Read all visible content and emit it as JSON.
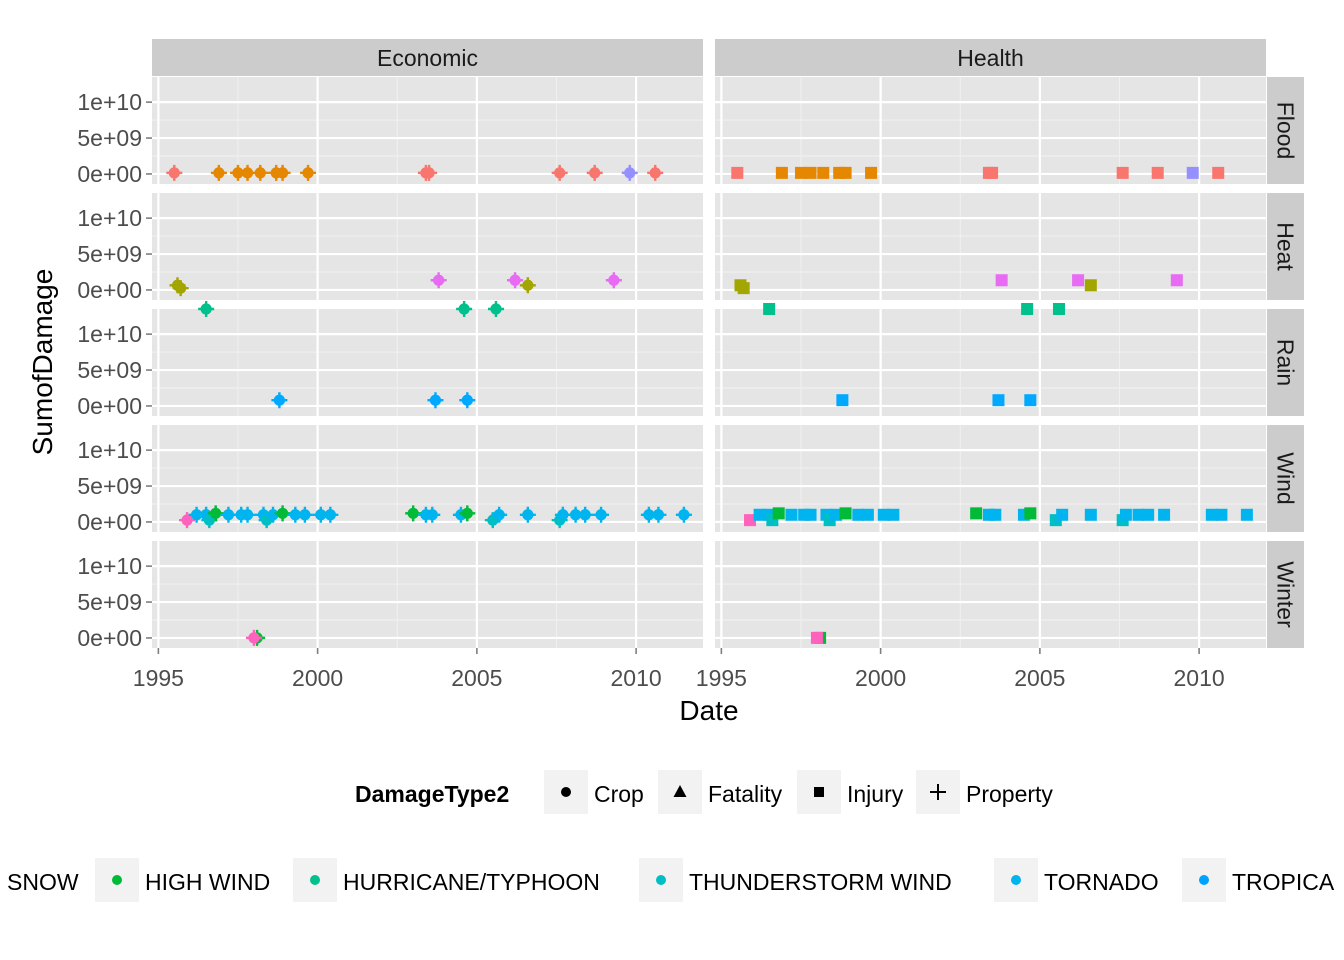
{
  "chart_data": {
    "type": "scatter",
    "xlabel": "Date",
    "ylabel": "SumofDamage",
    "xlim": [
      1994.8,
      2012.1
    ],
    "ylim": [
      -1400000000.0,
      13500000000.0
    ],
    "x_ticks": [
      1995,
      2000,
      2005,
      2010
    ],
    "x_tick_labels": [
      "1995",
      "2000",
      "2005",
      "2010"
    ],
    "y_ticks": [
      0,
      5000000000,
      10000000000
    ],
    "y_tick_labels": [
      "0e+00",
      "5e+09",
      "1e+10"
    ],
    "facet_cols": [
      "Economic",
      "Health"
    ],
    "facet_rows": [
      "Flood",
      "Heat",
      "Rain",
      "Wind",
      "Winter"
    ],
    "shape_legend": {
      "title": "DamageType2",
      "items": [
        {
          "label": "Crop",
          "shape": "circle"
        },
        {
          "label": "Fatality",
          "shape": "triangle"
        },
        {
          "label": "Injury",
          "shape": "square"
        },
        {
          "label": "Property",
          "shape": "plus"
        }
      ]
    },
    "color_legend": {
      "items": [
        {
          "label": "SNOW",
          "color": ""
        },
        {
          "label": "HIGH WIND",
          "color": "#00ba38"
        },
        {
          "label": "HURRICANE/TYPHOON",
          "color": "#00c08b"
        },
        {
          "label": "THUNDERSTORM WIND",
          "color": "#00bfc4"
        },
        {
          "label": "TORNADO",
          "color": "#00b4f0"
        },
        {
          "label": "TROPICA",
          "color": "#00a2ff"
        }
      ]
    },
    "panels": [
      {
        "row": "Flood",
        "col": "Economic",
        "shapes": [
          "circle",
          "plus"
        ],
        "points": [
          {
            "x": 1995.5,
            "y": 150000000.0,
            "color": "#f8766d"
          },
          {
            "x": 1996.9,
            "y": 150000000.0,
            "color": "#e58700"
          },
          {
            "x": 1997.5,
            "y": 150000000.0,
            "color": "#e58700"
          },
          {
            "x": 1997.8,
            "y": 150000000.0,
            "color": "#e58700"
          },
          {
            "x": 1998.2,
            "y": 150000000.0,
            "color": "#e58700"
          },
          {
            "x": 1998.7,
            "y": 150000000.0,
            "color": "#e58700"
          },
          {
            "x": 1998.9,
            "y": 150000000.0,
            "color": "#e58700"
          },
          {
            "x": 1999.7,
            "y": 150000000.0,
            "color": "#e58700"
          },
          {
            "x": 2003.4,
            "y": 150000000.0,
            "color": "#f8766d"
          },
          {
            "x": 2003.5,
            "y": 150000000.0,
            "color": "#f8766d"
          },
          {
            "x": 2007.6,
            "y": 150000000.0,
            "color": "#f8766d"
          },
          {
            "x": 2008.7,
            "y": 150000000.0,
            "color": "#f8766d"
          },
          {
            "x": 2009.8,
            "y": 150000000.0,
            "color": "#9590ff"
          },
          {
            "x": 2010.6,
            "y": 150000000.0,
            "color": "#f8766d"
          }
        ]
      },
      {
        "row": "Flood",
        "col": "Health",
        "shapes": [
          "square"
        ],
        "points": [
          {
            "x": 1995.5,
            "y": 150000000.0,
            "color": "#f8766d"
          },
          {
            "x": 1996.9,
            "y": 150000000.0,
            "color": "#e58700"
          },
          {
            "x": 1997.5,
            "y": 150000000.0,
            "color": "#e58700"
          },
          {
            "x": 1997.8,
            "y": 150000000.0,
            "color": "#e58700"
          },
          {
            "x": 1998.2,
            "y": 150000000.0,
            "color": "#e58700"
          },
          {
            "x": 1998.7,
            "y": 150000000.0,
            "color": "#e58700"
          },
          {
            "x": 1998.9,
            "y": 150000000.0,
            "color": "#e58700"
          },
          {
            "x": 1999.7,
            "y": 150000000.0,
            "color": "#e58700"
          },
          {
            "x": 2003.4,
            "y": 150000000.0,
            "color": "#f8766d"
          },
          {
            "x": 2003.5,
            "y": 150000000.0,
            "color": "#f8766d"
          },
          {
            "x": 2007.6,
            "y": 150000000.0,
            "color": "#f8766d"
          },
          {
            "x": 2008.7,
            "y": 150000000.0,
            "color": "#f8766d"
          },
          {
            "x": 2009.8,
            "y": 150000000.0,
            "color": "#9590ff"
          },
          {
            "x": 2010.6,
            "y": 150000000.0,
            "color": "#f8766d"
          }
        ]
      },
      {
        "row": "Heat",
        "col": "Economic",
        "shapes": [
          "circle",
          "plus"
        ],
        "points": [
          {
            "x": 1995.6,
            "y": 650000000.0,
            "color": "#a3a500"
          },
          {
            "x": 1995.7,
            "y": 250000000.0,
            "color": "#a3a500"
          },
          {
            "x": 2003.8,
            "y": 1350000000.0,
            "color": "#e76bf3"
          },
          {
            "x": 2006.2,
            "y": 1350000000.0,
            "color": "#e76bf3"
          },
          {
            "x": 2006.6,
            "y": 650000000.0,
            "color": "#a3a500"
          },
          {
            "x": 2009.3,
            "y": 1350000000.0,
            "color": "#e76bf3"
          }
        ]
      },
      {
        "row": "Heat",
        "col": "Health",
        "shapes": [
          "square"
        ],
        "points": [
          {
            "x": 1995.6,
            "y": 650000000.0,
            "color": "#a3a500"
          },
          {
            "x": 1995.7,
            "y": 250000000.0,
            "color": "#a3a500"
          },
          {
            "x": 2003.8,
            "y": 1350000000.0,
            "color": "#e76bf3"
          },
          {
            "x": 2006.2,
            "y": 1350000000.0,
            "color": "#e76bf3"
          },
          {
            "x": 2006.6,
            "y": 650000000.0,
            "color": "#a3a500"
          },
          {
            "x": 2009.3,
            "y": 1350000000.0,
            "color": "#e76bf3"
          }
        ]
      },
      {
        "row": "Rain",
        "col": "Economic",
        "shapes": [
          "circle",
          "plus"
        ],
        "points": [
          {
            "x": 1996.5,
            "y": 13500000000.0,
            "color": "#00c08b"
          },
          {
            "x": 2004.6,
            "y": 13500000000.0,
            "color": "#00c08b"
          },
          {
            "x": 2005.6,
            "y": 13500000000.0,
            "color": "#00c08b"
          },
          {
            "x": 1998.8,
            "y": 800000000.0,
            "color": "#00a9ff"
          },
          {
            "x": 2003.7,
            "y": 800000000.0,
            "color": "#00a9ff"
          },
          {
            "x": 2004.7,
            "y": 800000000.0,
            "color": "#00a9ff"
          }
        ]
      },
      {
        "row": "Rain",
        "col": "Health",
        "shapes": [
          "square"
        ],
        "points": [
          {
            "x": 1996.5,
            "y": 13500000000.0,
            "color": "#00c08b"
          },
          {
            "x": 2004.6,
            "y": 13500000000.0,
            "color": "#00c08b"
          },
          {
            "x": 2005.6,
            "y": 13500000000.0,
            "color": "#00c08b"
          },
          {
            "x": 1998.8,
            "y": 800000000.0,
            "color": "#00a9ff"
          },
          {
            "x": 2003.7,
            "y": 800000000.0,
            "color": "#00a9ff"
          },
          {
            "x": 2004.7,
            "y": 800000000.0,
            "color": "#00a9ff"
          }
        ]
      },
      {
        "row": "Wind",
        "col": "Economic",
        "shapes": [
          "circle",
          "plus"
        ],
        "points": [
          {
            "x": 1995.9,
            "y": 250000000.0,
            "color": "#ff62bc"
          },
          {
            "x": 1996.2,
            "y": 1000000000.0,
            "color": "#00b4f0"
          },
          {
            "x": 1996.5,
            "y": 1000000000.0,
            "color": "#00b4f0"
          },
          {
            "x": 1996.6,
            "y": 250000000.0,
            "color": "#00bfc4"
          },
          {
            "x": 1996.8,
            "y": 1200000000.0,
            "color": "#00ba38"
          },
          {
            "x": 1997.2,
            "y": 1000000000.0,
            "color": "#00b4f0"
          },
          {
            "x": 1997.6,
            "y": 1000000000.0,
            "color": "#00b4f0"
          },
          {
            "x": 1997.8,
            "y": 1000000000.0,
            "color": "#00b4f0"
          },
          {
            "x": 1998.3,
            "y": 1000000000.0,
            "color": "#00b4f0"
          },
          {
            "x": 1998.4,
            "y": 250000000.0,
            "color": "#00bfc4"
          },
          {
            "x": 1998.6,
            "y": 1000000000.0,
            "color": "#00b4f0"
          },
          {
            "x": 1998.9,
            "y": 1200000000.0,
            "color": "#00ba38"
          },
          {
            "x": 1999.3,
            "y": 1000000000.0,
            "color": "#00b4f0"
          },
          {
            "x": 1999.6,
            "y": 1000000000.0,
            "color": "#00b4f0"
          },
          {
            "x": 2000.1,
            "y": 1000000000.0,
            "color": "#00b4f0"
          },
          {
            "x": 2000.4,
            "y": 1000000000.0,
            "color": "#00b4f0"
          },
          {
            "x": 2003.0,
            "y": 1200000000.0,
            "color": "#00ba38"
          },
          {
            "x": 2003.4,
            "y": 1000000000.0,
            "color": "#00b4f0"
          },
          {
            "x": 2003.6,
            "y": 1000000000.0,
            "color": "#00b4f0"
          },
          {
            "x": 2004.5,
            "y": 1000000000.0,
            "color": "#00b4f0"
          },
          {
            "x": 2004.7,
            "y": 1200000000.0,
            "color": "#00ba38"
          },
          {
            "x": 2005.5,
            "y": 250000000.0,
            "color": "#00bfc4"
          },
          {
            "x": 2005.7,
            "y": 1000000000.0,
            "color": "#00b4f0"
          },
          {
            "x": 2006.6,
            "y": 1000000000.0,
            "color": "#00b4f0"
          },
          {
            "x": 2007.6,
            "y": 250000000.0,
            "color": "#00bfc4"
          },
          {
            "x": 2007.7,
            "y": 1000000000.0,
            "color": "#00b4f0"
          },
          {
            "x": 2008.1,
            "y": 1000000000.0,
            "color": "#00b4f0"
          },
          {
            "x": 2008.4,
            "y": 1000000000.0,
            "color": "#00b4f0"
          },
          {
            "x": 2008.9,
            "y": 1000000000.0,
            "color": "#00b4f0"
          },
          {
            "x": 2010.4,
            "y": 1000000000.0,
            "color": "#00b4f0"
          },
          {
            "x": 2010.7,
            "y": 1000000000.0,
            "color": "#00b4f0"
          },
          {
            "x": 2011.5,
            "y": 1000000000.0,
            "color": "#00b4f0"
          }
        ]
      },
      {
        "row": "Wind",
        "col": "Health",
        "shapes": [
          "square"
        ],
        "points": [
          {
            "x": 1995.9,
            "y": 250000000.0,
            "color": "#ff62bc"
          },
          {
            "x": 1996.2,
            "y": 1000000000.0,
            "color": "#00b4f0"
          },
          {
            "x": 1996.5,
            "y": 1000000000.0,
            "color": "#00b4f0"
          },
          {
            "x": 1996.6,
            "y": 250000000.0,
            "color": "#00bfc4"
          },
          {
            "x": 1996.8,
            "y": 1200000000.0,
            "color": "#00ba38"
          },
          {
            "x": 1997.2,
            "y": 1000000000.0,
            "color": "#00b4f0"
          },
          {
            "x": 1997.6,
            "y": 1000000000.0,
            "color": "#00b4f0"
          },
          {
            "x": 1997.8,
            "y": 1000000000.0,
            "color": "#00b4f0"
          },
          {
            "x": 1998.3,
            "y": 1000000000.0,
            "color": "#00b4f0"
          },
          {
            "x": 1998.4,
            "y": 250000000.0,
            "color": "#00bfc4"
          },
          {
            "x": 1998.6,
            "y": 1000000000.0,
            "color": "#00b4f0"
          },
          {
            "x": 1998.9,
            "y": 1200000000.0,
            "color": "#00ba38"
          },
          {
            "x": 1999.3,
            "y": 1000000000.0,
            "color": "#00b4f0"
          },
          {
            "x": 1999.6,
            "y": 1000000000.0,
            "color": "#00b4f0"
          },
          {
            "x": 2000.1,
            "y": 1000000000.0,
            "color": "#00b4f0"
          },
          {
            "x": 2000.4,
            "y": 1000000000.0,
            "color": "#00b4f0"
          },
          {
            "x": 2003.0,
            "y": 1200000000.0,
            "color": "#00ba38"
          },
          {
            "x": 2003.4,
            "y": 1000000000.0,
            "color": "#00b4f0"
          },
          {
            "x": 2003.6,
            "y": 1000000000.0,
            "color": "#00b4f0"
          },
          {
            "x": 2004.5,
            "y": 1000000000.0,
            "color": "#00b4f0"
          },
          {
            "x": 2004.7,
            "y": 1200000000.0,
            "color": "#00ba38"
          },
          {
            "x": 2005.5,
            "y": 250000000.0,
            "color": "#00bfc4"
          },
          {
            "x": 2005.7,
            "y": 1000000000.0,
            "color": "#00b4f0"
          },
          {
            "x": 2006.6,
            "y": 1000000000.0,
            "color": "#00b4f0"
          },
          {
            "x": 2007.6,
            "y": 250000000.0,
            "color": "#00bfc4"
          },
          {
            "x": 2007.7,
            "y": 1000000000.0,
            "color": "#00b4f0"
          },
          {
            "x": 2008.1,
            "y": 1000000000.0,
            "color": "#00b4f0"
          },
          {
            "x": 2008.4,
            "y": 1000000000.0,
            "color": "#00b4f0"
          },
          {
            "x": 2008.9,
            "y": 1000000000.0,
            "color": "#00b4f0"
          },
          {
            "x": 2010.4,
            "y": 1000000000.0,
            "color": "#00b4f0"
          },
          {
            "x": 2010.7,
            "y": 1000000000.0,
            "color": "#00b4f0"
          },
          {
            "x": 2011.5,
            "y": 1000000000.0,
            "color": "#00b4f0"
          }
        ]
      },
      {
        "row": "Winter",
        "col": "Economic",
        "shapes": [
          "circle",
          "plus"
        ],
        "points": [
          {
            "x": 1998.1,
            "y": 10000000.0,
            "color": "#00ba38"
          },
          {
            "x": 1998.0,
            "y": 10000000.0,
            "color": "#ff62bc"
          }
        ]
      },
      {
        "row": "Winter",
        "col": "Health",
        "shapes": [
          "square"
        ],
        "points": [
          {
            "x": 1998.1,
            "y": 10000000.0,
            "color": "#00ba38"
          },
          {
            "x": 1998.0,
            "y": 10000000.0,
            "color": "#ff62bc"
          }
        ]
      }
    ]
  }
}
